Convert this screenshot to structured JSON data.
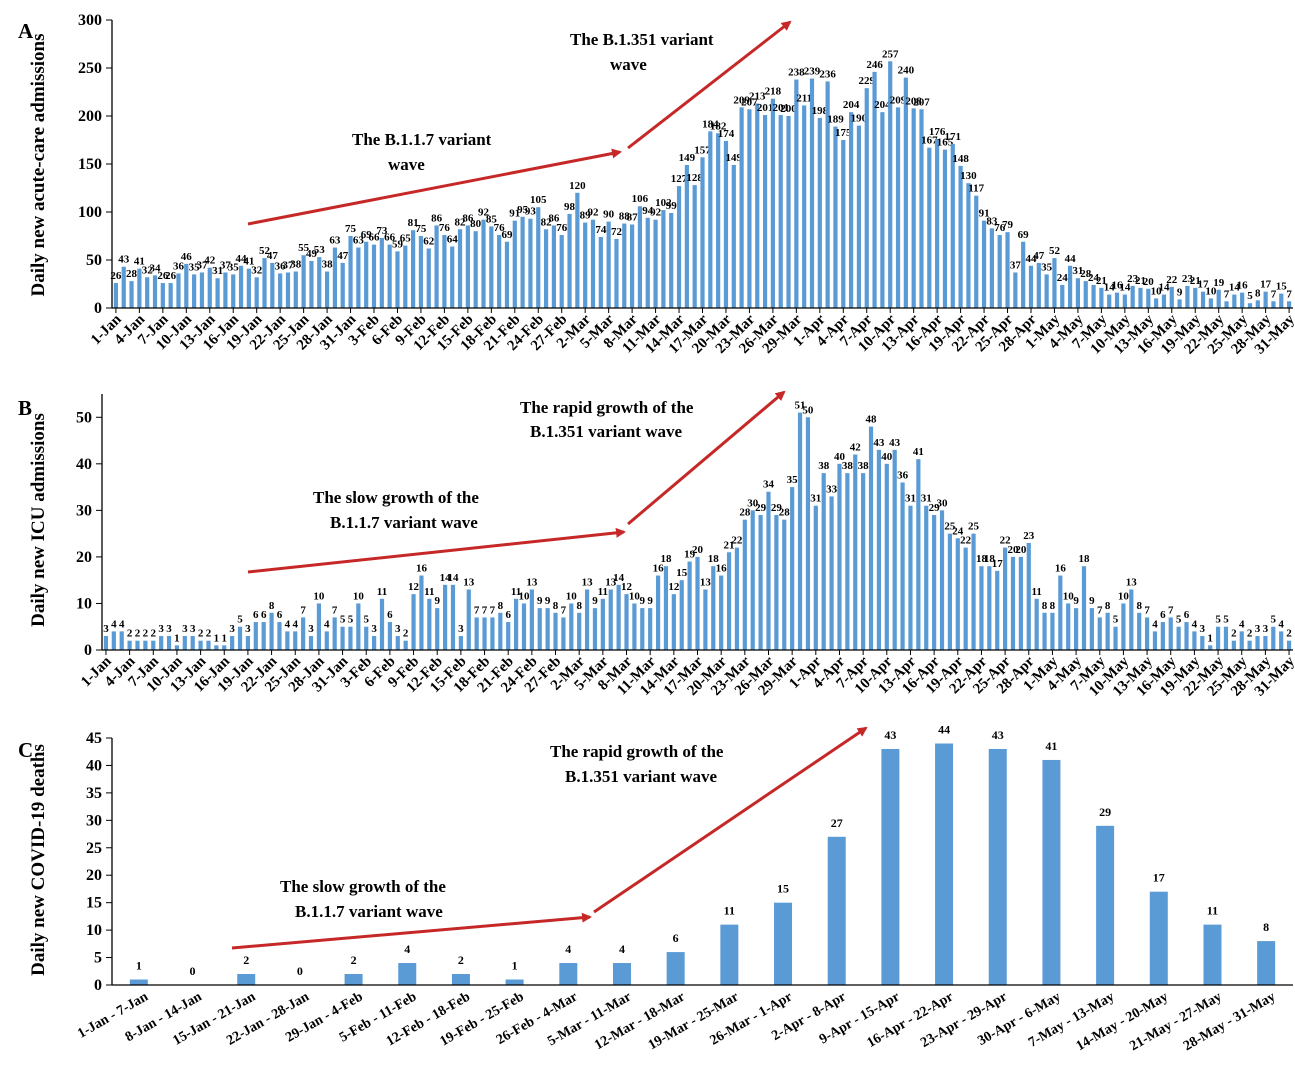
{
  "chart_data": [
    {
      "panel": "A",
      "type": "bar",
      "ylabel": "Daily new acute-care admissions",
      "ylim": [
        0,
        300
      ],
      "yticks": [
        0,
        50,
        100,
        150,
        200,
        250,
        300
      ],
      "start_date": "2021-01-01",
      "x_tick_labels": [
        "1-Jan",
        "4-Jan",
        "7-Jan",
        "10-Jan",
        "13-Jan",
        "16-Jan",
        "19-Jan",
        "22-Jan",
        "25-Jan",
        "28-Jan",
        "31-Jan",
        "3-Feb",
        "6-Feb",
        "9-Feb",
        "12-Feb",
        "15-Feb",
        "18-Feb",
        "21-Feb",
        "24-Feb",
        "27-Feb",
        "2-Mar",
        "5-Mar",
        "8-Mar",
        "11-Mar",
        "14-Mar",
        "17-Mar",
        "20-Mar",
        "23-Mar",
        "26-Mar",
        "29-Mar",
        "1-Apr",
        "4-Apr",
        "7-Apr",
        "10-Apr",
        "13-Apr",
        "16-Apr",
        "19-Apr",
        "22-Apr",
        "25-Apr",
        "28-Apr",
        "1-May",
        "4-May",
        "7-May",
        "10-May",
        "13-May",
        "16-May",
        "19-May",
        "22-May",
        "25-May",
        "28-May",
        "31-May"
      ],
      "values": [
        26,
        43,
        28,
        41,
        32,
        34,
        26,
        26,
        36,
        46,
        35,
        37,
        42,
        31,
        37,
        35,
        44,
        41,
        32,
        52,
        47,
        36,
        37,
        38,
        55,
        49,
        53,
        38,
        63,
        47,
        75,
        63,
        69,
        66,
        73,
        66,
        59,
        65,
        81,
        75,
        62,
        86,
        76,
        64,
        82,
        86,
        80,
        92,
        85,
        76,
        69,
        91,
        95,
        93,
        105,
        82,
        86,
        76,
        98,
        120,
        89,
        92,
        74,
        90,
        72,
        88,
        87,
        106,
        94,
        92,
        102,
        99,
        127,
        149,
        128,
        157,
        184,
        182,
        174,
        149,
        209,
        207,
        213,
        201,
        218,
        201,
        200,
        238,
        211,
        239,
        198,
        236,
        189,
        175,
        204,
        190,
        229,
        246,
        204,
        257,
        209,
        240,
        208,
        207,
        167,
        176,
        165,
        171,
        148,
        130,
        117,
        91,
        83,
        76,
        79,
        37,
        69,
        44,
        47,
        35,
        52,
        24,
        44,
        31,
        28,
        24,
        21,
        14,
        16,
        14,
        23,
        21,
        20,
        10,
        14,
        22,
        9,
        23,
        21,
        17,
        10,
        19,
        7,
        14,
        16,
        5,
        8,
        17,
        7,
        15,
        7
      ],
      "annotations": [
        {
          "text_lines": [
            "The B.1.1.7 variant",
            "wave"
          ]
        },
        {
          "text_lines": [
            "The B.1.351 variant",
            "wave"
          ]
        }
      ]
    },
    {
      "panel": "B",
      "type": "bar",
      "ylabel": "Daily new ICU admissions",
      "ylim": [
        0,
        55
      ],
      "yticks": [
        0,
        10,
        20,
        30,
        40,
        50
      ],
      "start_date": "2021-01-01",
      "x_tick_labels": [
        "1-Jan",
        "4-Jan",
        "7-Jan",
        "10-Jan",
        "13-Jan",
        "16-Jan",
        "19-Jan",
        "22-Jan",
        "25-Jan",
        "28-Jan",
        "31-Jan",
        "3-Feb",
        "6-Feb",
        "9-Feb",
        "12-Feb",
        "15-Feb",
        "18-Feb",
        "21-Feb",
        "24-Feb",
        "27-Feb",
        "2-Mar",
        "5-Mar",
        "8-Mar",
        "11-Mar",
        "14-Mar",
        "17-Mar",
        "20-Mar",
        "23-Mar",
        "26-Mar",
        "29-Mar",
        "1-Apr",
        "4-Apr",
        "7-Apr",
        "10-Apr",
        "13-Apr",
        "16-Apr",
        "19-Apr",
        "22-Apr",
        "25-Apr",
        "28-Apr",
        "1-May",
        "4-May",
        "7-May",
        "10-May",
        "13-May",
        "16-May",
        "19-May",
        "22-May",
        "25-May",
        "28-May",
        "31-May"
      ],
      "values": [
        3,
        4,
        4,
        2,
        2,
        2,
        2,
        3,
        3,
        1,
        3,
        3,
        2,
        2,
        1,
        1,
        3,
        5,
        3,
        6,
        6,
        8,
        6,
        4,
        4,
        7,
        3,
        10,
        4,
        7,
        5,
        5,
        10,
        5,
        3,
        11,
        6,
        3,
        2,
        12,
        16,
        11,
        9,
        14,
        14,
        3,
        13,
        7,
        7,
        7,
        8,
        6,
        11,
        10,
        13,
        9,
        9,
        8,
        7,
        10,
        8,
        13,
        9,
        11,
        13,
        14,
        12,
        10,
        9,
        9,
        16,
        18,
        12,
        15,
        19,
        20,
        13,
        18,
        16,
        21,
        22,
        28,
        30,
        29,
        34,
        29,
        28,
        35,
        51,
        50,
        31,
        38,
        33,
        40,
        38,
        42,
        38,
        48,
        43,
        40,
        43,
        36,
        31,
        41,
        31,
        29,
        30,
        25,
        24,
        22,
        25,
        18,
        18,
        17,
        22,
        20,
        20,
        23,
        11,
        8,
        8,
        16,
        10,
        9,
        18,
        9,
        7,
        8,
        5,
        10,
        13,
        8,
        7,
        4,
        6,
        7,
        5,
        6,
        4,
        3,
        1,
        5,
        5,
        2,
        4,
        2,
        3,
        3,
        5,
        4,
        2
      ],
      "annotations": [
        {
          "text_lines": [
            "The slow growth of the",
            "B.1.1.7 variant wave"
          ]
        },
        {
          "text_lines": [
            "The rapid growth of the",
            "B.1.351 variant wave"
          ]
        }
      ]
    },
    {
      "panel": "C",
      "type": "bar",
      "ylabel": "Daily new COVID-19 deaths",
      "ylim": [
        0,
        45
      ],
      "yticks": [
        0,
        5,
        10,
        15,
        20,
        25,
        30,
        35,
        40,
        45
      ],
      "categories": [
        "1-Jan - 7-Jan",
        "8-Jan - 14-Jan",
        "15-Jan - 21-Jan",
        "22-Jan - 28-Jan",
        "29-Jan - 4-Feb",
        "5-Feb - 11-Feb",
        "12-Feb - 18-Feb",
        "19-Feb - 25-Feb",
        "26-Feb - 4-Mar",
        "5-Mar - 11-Mar",
        "12-Mar - 18-Mar",
        "19-Mar - 25-Mar",
        "26-Mar - 1-Apr",
        "2-Apr - 8-Apr",
        "9-Apr - 15-Apr",
        "16-Apr - 22-Apr",
        "23-Apr - 29-Apr",
        "30-Apr - 6-May",
        "7-May - 13-May",
        "14-May - 20-May",
        "21-May - 27-May",
        "28-May - 31-May"
      ],
      "values": [
        1,
        0,
        2,
        0,
        2,
        4,
        2,
        1,
        4,
        4,
        6,
        11,
        15,
        27,
        43,
        44,
        43,
        41,
        29,
        17,
        11,
        8
      ],
      "annotations": [
        {
          "text_lines": [
            "The slow growth of the",
            "B.1.1.7 variant wave"
          ]
        },
        {
          "text_lines": [
            "The rapid growth of the",
            "B.1.351 variant wave"
          ]
        }
      ]
    }
  ],
  "colors": {
    "bar": "#5b9bd5",
    "arrow": "#c62828"
  }
}
